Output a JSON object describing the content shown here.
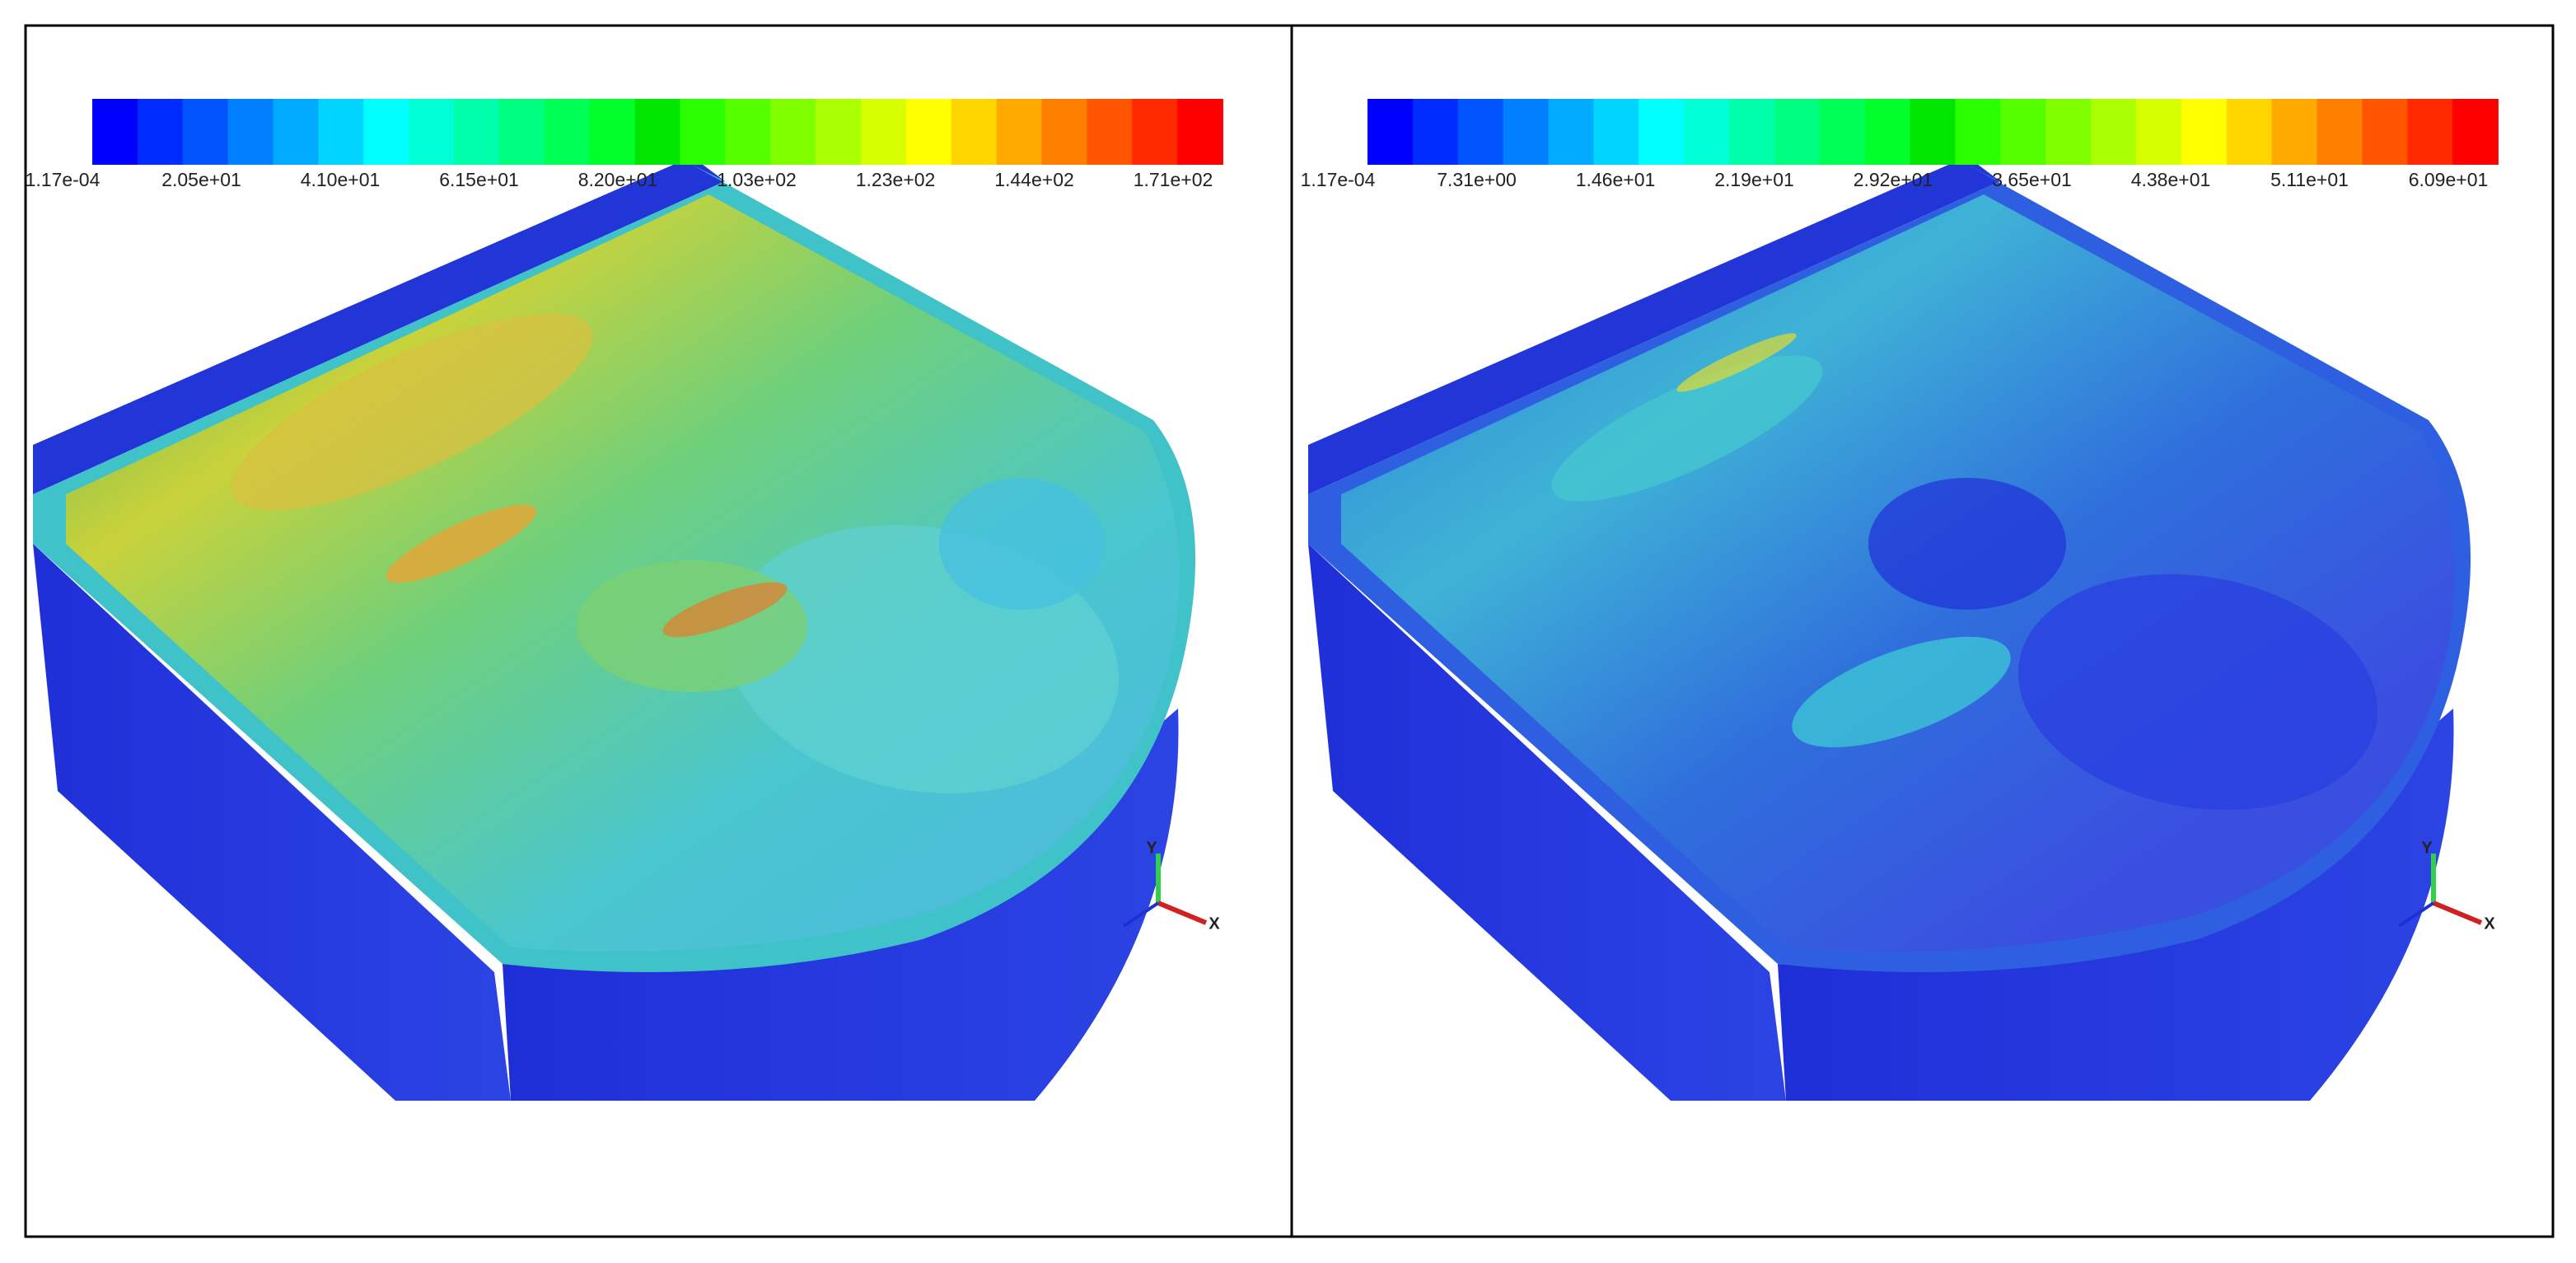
{
  "panels": [
    {
      "colorbar": {
        "labels": [
          "1.17e-04",
          "2.05e+01",
          "4.10e+01",
          "6.15e+01",
          "8.20e+01",
          "1.03e+02",
          "1.23e+02",
          "1.44e+02",
          "1.71e+02"
        ]
      },
      "triad": {
        "y": "Y",
        "x": "X"
      }
    },
    {
      "colorbar": {
        "labels": [
          "1.17e-04",
          "7.31e+00",
          "1.46e+01",
          "2.19e+01",
          "2.92e+01",
          "3.65e+01",
          "4.38e+01",
          "5.11e+01",
          "6.09e+01"
        ]
      },
      "triad": {
        "y": "Y",
        "x": "X"
      }
    }
  ]
}
